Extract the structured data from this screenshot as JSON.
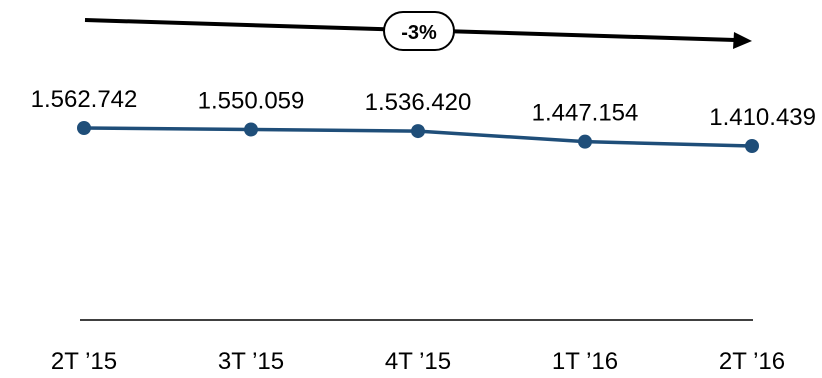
{
  "chart_data": {
    "type": "line",
    "categories": [
      "2T ’15",
      "3T ’15",
      "4T ’15",
      "1T ’16",
      "2T ’16"
    ],
    "series": [
      {
        "values": [
          1562742,
          1550059,
          1536420,
          1447154,
          1410439
        ],
        "value_labels": [
          "1.562.742",
          "1.550.059",
          "1.536.420",
          "1.447.154",
          "1.410.439"
        ],
        "color": "#1F4E79"
      }
    ],
    "title": "",
    "xlabel": "",
    "ylabel": "",
    "grid": false,
    "legend": "none",
    "annotation": {
      "type": "trend-arrow",
      "label": "-3%"
    }
  },
  "colors": {
    "series": "#1F4E79",
    "arrow": "#000000",
    "axis": "#000000"
  }
}
